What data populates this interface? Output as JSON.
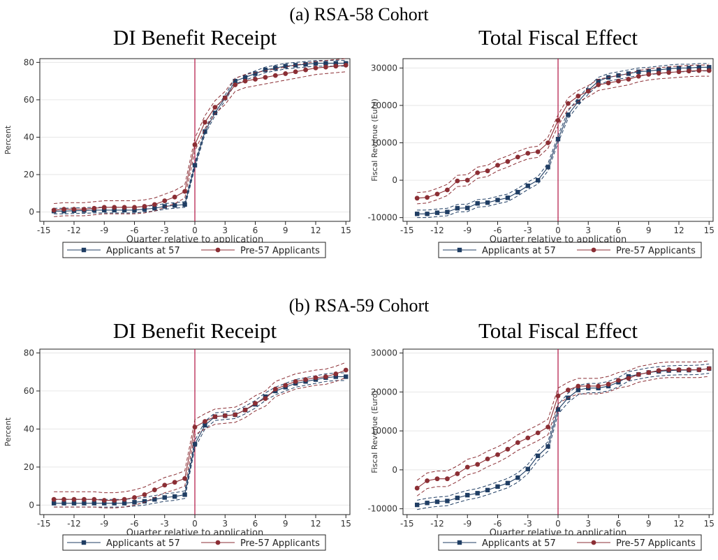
{
  "panels": [
    {
      "title": "(a) RSA-58 Cohort"
    },
    {
      "title": "(b) RSA-59 Cohort"
    }
  ],
  "legend": {
    "series1": "Applicants at 57",
    "series2": "Pre-57 Applicants"
  },
  "colors": {
    "series1": "#1f3d63",
    "series2": "#8b2e34",
    "vline": "#b01040",
    "grid": "#e6e6e6",
    "frame": "#222222"
  },
  "chart_data": [
    {
      "id": "a-di",
      "type": "line",
      "title": "DI Benefit Receipt",
      "xlabel": "Quarter relative to application",
      "ylabel": "Percent",
      "x": [
        -14,
        -13,
        -12,
        -11,
        -10,
        -9,
        -8,
        -7,
        -6,
        -5,
        -4,
        -3,
        -2,
        -1,
        0,
        1,
        2,
        3,
        4,
        5,
        6,
        7,
        8,
        9,
        10,
        11,
        12,
        13,
        14,
        15
      ],
      "xticks": [
        -15,
        -12,
        -9,
        -6,
        -3,
        0,
        3,
        6,
        9,
        12,
        15
      ],
      "yticks": [
        0,
        20,
        40,
        60,
        80
      ],
      "xlim": [
        -15.4,
        15.4
      ],
      "ylim": [
        -5,
        82
      ],
      "vline": 0,
      "series": [
        {
          "name": "Applicants at 57",
          "values": [
            0.5,
            0.5,
            0.7,
            0.8,
            1,
            1,
            1,
            1,
            1,
            1.5,
            2,
            3,
            3.5,
            4,
            25,
            43,
            53,
            61,
            70,
            72,
            74,
            76,
            77,
            78,
            78.5,
            79,
            79.5,
            79.5,
            79.5,
            79.5
          ],
          "ci_half": 1.5
        },
        {
          "name": "Pre-57 Applicants",
          "values": [
            1,
            1.5,
            1.5,
            1.5,
            2,
            2.5,
            2.5,
            2.5,
            2.5,
            3,
            4,
            6,
            8,
            11,
            36,
            48,
            56,
            61,
            68,
            70,
            71,
            72,
            73,
            74,
            75,
            76,
            77,
            77.5,
            78,
            78.5
          ],
          "ci_half": 3.5
        }
      ]
    },
    {
      "id": "a-fiscal",
      "type": "line",
      "title": "Total Fiscal Effect",
      "xlabel": "Quarter relative to application",
      "ylabel": "Fiscal Revenue (Euro)",
      "x": [
        -14,
        -13,
        -12,
        -11,
        -10,
        -9,
        -8,
        -7,
        -6,
        -5,
        -4,
        -3,
        -2,
        -1,
        0,
        1,
        2,
        3,
        4,
        5,
        6,
        7,
        8,
        9,
        10,
        11,
        12,
        13,
        14,
        15
      ],
      "xticks": [
        -15,
        -12,
        -9,
        -6,
        -3,
        0,
        3,
        6,
        9,
        12,
        15
      ],
      "yticks": [
        -10000,
        0,
        10000,
        20000,
        30000
      ],
      "xlim": [
        -15.4,
        15.4
      ],
      "ylim": [
        -11000,
        32500
      ],
      "vline": 0,
      "series": [
        {
          "name": "Applicants at 57",
          "values": [
            -9000,
            -9000,
            -8700,
            -8500,
            -7500,
            -7400,
            -6200,
            -6000,
            -5300,
            -4700,
            -3200,
            -1500,
            0,
            3500,
            11000,
            17500,
            21000,
            24000,
            26500,
            27500,
            28000,
            28500,
            29000,
            29200,
            29500,
            29800,
            30000,
            30000,
            30200,
            30200
          ],
          "ci_half": 1000
        },
        {
          "name": "Pre-57 Applicants",
          "values": [
            -4800,
            -4600,
            -3700,
            -2600,
            -200,
            0,
            2000,
            2500,
            4000,
            5000,
            6200,
            7200,
            7600,
            10000,
            16000,
            20500,
            22500,
            23800,
            25500,
            26000,
            26500,
            27000,
            27800,
            28300,
            28600,
            28800,
            29000,
            29200,
            29300,
            29300
          ],
          "ci_half": 1500
        }
      ]
    },
    {
      "id": "b-di",
      "type": "line",
      "title": "DI Benefit Receipt",
      "xlabel": "Quarter relative to application",
      "ylabel": "Percent",
      "x": [
        -14,
        -13,
        -12,
        -11,
        -10,
        -9,
        -8,
        -7,
        -6,
        -5,
        -4,
        -3,
        -2,
        -1,
        0,
        1,
        2,
        3,
        4,
        5,
        6,
        7,
        8,
        9,
        10,
        11,
        12,
        13,
        14,
        15
      ],
      "xticks": [
        -15,
        -12,
        -9,
        -6,
        -3,
        0,
        3,
        6,
        9,
        12,
        15
      ],
      "yticks": [
        0,
        20,
        40,
        60,
        80
      ],
      "xlim": [
        -15.4,
        15.4
      ],
      "ylim": [
        -5,
        82
      ],
      "vline": 0,
      "series": [
        {
          "name": "Applicants at 57",
          "values": [
            1,
            1,
            1,
            1,
            1,
            1,
            1,
            1,
            1.5,
            2,
            3,
            4,
            4.5,
            5.5,
            32,
            42,
            46.5,
            47,
            47.5,
            50,
            53,
            57,
            60,
            62,
            64,
            65,
            66,
            67,
            67.5,
            67.5
          ],
          "ci_half": 2
        },
        {
          "name": "Pre-57 Applicants",
          "values": [
            3,
            3,
            3,
            3,
            3,
            2.5,
            2.5,
            3,
            4,
            5.5,
            8,
            10.5,
            12,
            14,
            41,
            44,
            46.5,
            47,
            47.5,
            50,
            53.5,
            56,
            61,
            63,
            65,
            66,
            67,
            67.5,
            69,
            71
          ],
          "ci_half": 4
        }
      ]
    },
    {
      "id": "b-fiscal",
      "type": "line",
      "title": "Total Fiscal Effect",
      "xlabel": "Quarter relative to application",
      "ylabel": "Fiscal Revenue (Euro)",
      "x": [
        -14,
        -13,
        -12,
        -11,
        -10,
        -9,
        -8,
        -7,
        -6,
        -5,
        -4,
        -3,
        -2,
        -1,
        0,
        1,
        2,
        3,
        4,
        5,
        6,
        7,
        8,
        9,
        10,
        11,
        12,
        13,
        14,
        15
      ],
      "xticks": [
        -15,
        -12,
        -9,
        -6,
        -3,
        0,
        3,
        6,
        9,
        12,
        15
      ],
      "yticks": [
        -10000,
        0,
        10000,
        20000,
        30000
      ],
      "xlim": [
        -15.4,
        15.4
      ],
      "ylim": [
        -11500,
        31000
      ],
      "vline": 0,
      "series": [
        {
          "name": "Applicants at 57",
          "values": [
            -9000,
            -8500,
            -8200,
            -8000,
            -7200,
            -6500,
            -6000,
            -5200,
            -4300,
            -3400,
            -2000,
            200,
            3600,
            6000,
            15500,
            18500,
            20500,
            21000,
            21000,
            21500,
            22500,
            24000,
            24500,
            25000,
            25300,
            25500,
            25600,
            25600,
            25700,
            26000
          ],
          "ci_half": 1200
        },
        {
          "name": "Pre-57 Applicants",
          "values": [
            -4700,
            -2800,
            -2300,
            -2300,
            -1000,
            700,
            1400,
            2800,
            3900,
            5300,
            7000,
            8200,
            9500,
            11000,
            19000,
            20500,
            21500,
            21500,
            21500,
            22000,
            23000,
            23500,
            24500,
            25000,
            25500,
            25700,
            25700,
            25700,
            25700,
            26000
          ],
          "ci_half": 2000
        }
      ]
    }
  ]
}
